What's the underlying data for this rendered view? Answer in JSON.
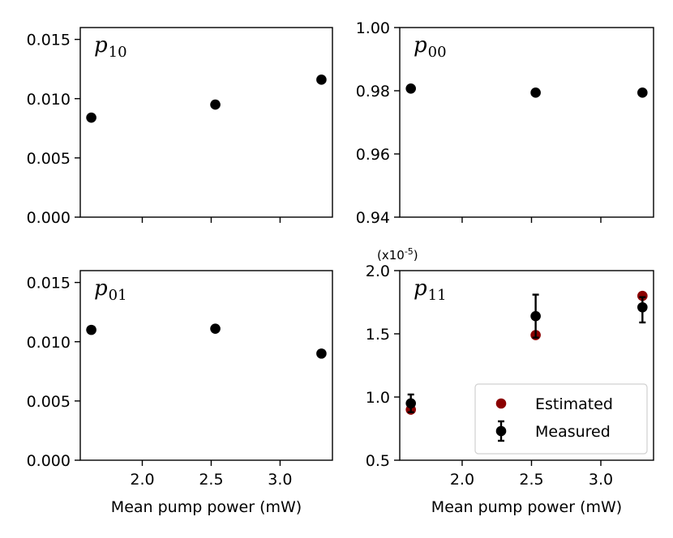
{
  "chart_data": [
    {
      "type": "scatter",
      "panel_label": "p",
      "panel_sub": "10",
      "x": [
        1.63,
        2.53,
        3.3
      ],
      "series": [
        {
          "name": "Measured",
          "values": [
            0.0084,
            0.0095,
            0.0116
          ],
          "color": "#000000"
        }
      ],
      "yticks": [
        "0.000",
        "0.005",
        "0.010",
        "0.015"
      ],
      "ytick_values": [
        0.0,
        0.005,
        0.01,
        0.015
      ],
      "ylim": [
        0.0,
        0.016
      ],
      "xlim": [
        1.55,
        3.38
      ],
      "xticks": [
        2.0,
        2.5,
        3.0
      ],
      "show_xtick_labels": false,
      "xlabel": ""
    },
    {
      "type": "scatter",
      "panel_label": "p",
      "panel_sub": "00",
      "x": [
        1.63,
        2.53,
        3.3
      ],
      "series": [
        {
          "name": "Measured",
          "values": [
            0.9807,
            0.9794,
            0.9794
          ],
          "color": "#000000"
        }
      ],
      "yticks": [
        "0.94",
        "0.96",
        "0.98",
        "1.00"
      ],
      "ytick_values": [
        0.94,
        0.96,
        0.98,
        1.0
      ],
      "ylim": [
        0.94,
        1.0
      ],
      "xlim": [
        1.55,
        3.38
      ],
      "xticks": [
        2.0,
        2.5,
        3.0
      ],
      "show_xtick_labels": false,
      "xlabel": ""
    },
    {
      "type": "scatter",
      "panel_label": "p",
      "panel_sub": "01",
      "x": [
        1.63,
        2.53,
        3.3
      ],
      "series": [
        {
          "name": "Measured",
          "values": [
            0.011,
            0.0111,
            0.009
          ],
          "color": "#000000"
        }
      ],
      "yticks": [
        "0.000",
        "0.005",
        "0.010",
        "0.015"
      ],
      "ytick_values": [
        0.0,
        0.005,
        0.01,
        0.015
      ],
      "ylim": [
        0.0,
        0.016
      ],
      "xlim": [
        1.55,
        3.38
      ],
      "xticks": [
        2.0,
        2.5,
        3.0
      ],
      "xtick_labels": [
        "2.0",
        "2.5",
        "3.0"
      ],
      "show_xtick_labels": true,
      "xlabel": "Mean pump power (mW)"
    },
    {
      "type": "scatter",
      "panel_label": "p",
      "panel_sub": "11",
      "multiplier_base": "(x10",
      "multiplier_exp": "-5",
      "multiplier_close": ")",
      "x": [
        1.63,
        2.53,
        3.3
      ],
      "series": [
        {
          "name": "Estimated",
          "values": [
            0.9,
            1.49,
            1.8
          ],
          "color": "#8b0000"
        },
        {
          "name": "Measured",
          "values": [
            0.95,
            1.64,
            1.71
          ],
          "err_low": [
            0.88,
            1.47,
            1.59
          ],
          "err_high": [
            1.02,
            1.81,
            1.79
          ],
          "color": "#000000"
        }
      ],
      "yticks": [
        "0.5",
        "1.0",
        "1.5",
        "2.0"
      ],
      "ytick_values": [
        0.5,
        1.0,
        1.5,
        2.0
      ],
      "ylim": [
        0.5,
        2.0
      ],
      "xlim": [
        1.55,
        3.38
      ],
      "xticks": [
        2.0,
        2.5,
        3.0
      ],
      "xtick_labels": [
        "2.0",
        "2.5",
        "3.0"
      ],
      "show_xtick_labels": true,
      "xlabel": "Mean pump power (mW)",
      "legend": {
        "placement": "lower-right",
        "entries": [
          "Estimated",
          "Measured"
        ]
      }
    }
  ]
}
